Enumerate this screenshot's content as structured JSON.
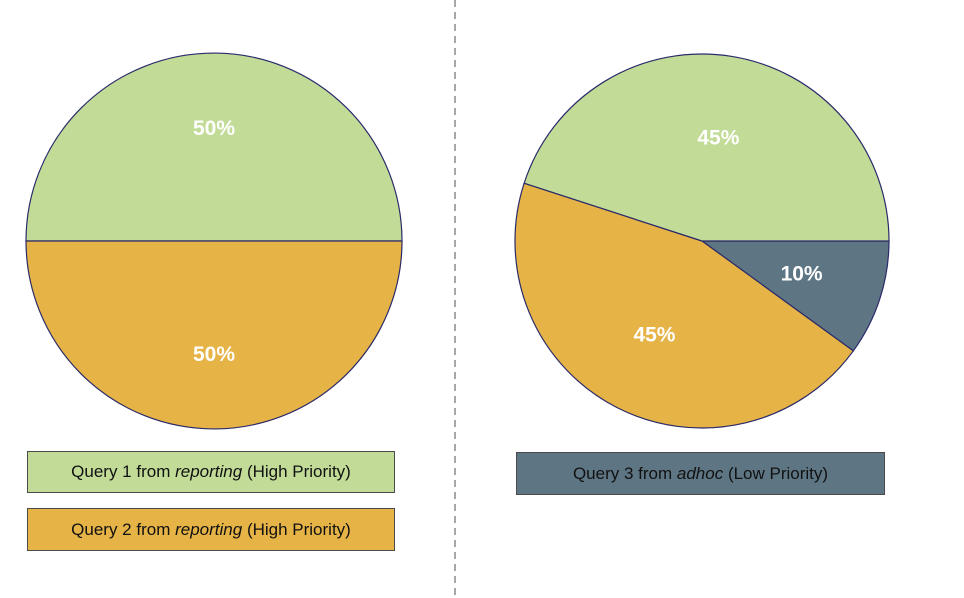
{
  "colors": {
    "q1": "#c2dc98",
    "q2": "#e6b346",
    "q3": "#5e7684",
    "edge": "#2a2a6a",
    "divider": "#8a8a8a"
  },
  "legend": [
    {
      "prefix": "Query 1 from ",
      "source": "reporting",
      "suffix": " (High Priority)",
      "color": "#c2dc98"
    },
    {
      "prefix": "Query 2 from ",
      "source": "reporting",
      "suffix": " (High Priority)",
      "color": "#e6b346"
    },
    {
      "prefix": "Query 3 from ",
      "source": "adhoc",
      "suffix": " (Low Priority)",
      "color": "#5e7684"
    }
  ],
  "chart_data": [
    {
      "type": "pie",
      "labels": [
        "Query 1 from reporting (High Priority)",
        "Query 2 from reporting (High Priority)"
      ],
      "values": [
        50,
        50
      ],
      "value_labels": [
        "50%",
        "50%"
      ],
      "colors": [
        "#c2dc98",
        "#e6b346"
      ]
    },
    {
      "type": "pie",
      "labels": [
        "Query 1 from reporting (High Priority)",
        "Query 2 from reporting (High Priority)",
        "Query 3 from adhoc (Low Priority)"
      ],
      "values": [
        45,
        45,
        10
      ],
      "value_labels": [
        "45%",
        "45%",
        "10%"
      ],
      "colors": [
        "#c2dc98",
        "#e6b346",
        "#5e7684"
      ]
    }
  ]
}
